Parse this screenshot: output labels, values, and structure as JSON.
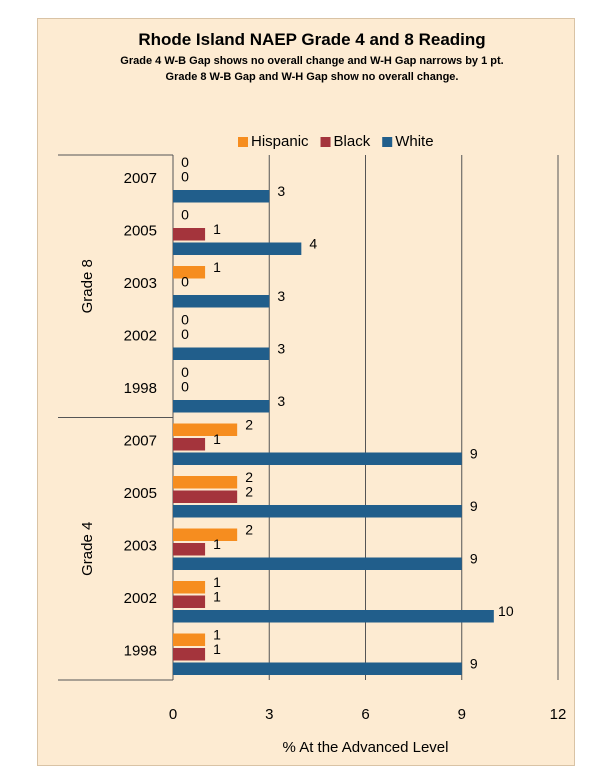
{
  "chart_data": {
    "type": "bar",
    "orientation": "horizontal",
    "title": "Rhode Island NAEP Grade 4 and 8 Reading",
    "subtitle": [
      "Grade 4 W-B Gap shows no overall change and W-H Gap narrows by 1 pt.",
      "Grade 8 W-B Gap and W-H Gap show no overall change."
    ],
    "groups": [
      {
        "label": "Grade 8",
        "categories": [
          "2007",
          "2005",
          "2003",
          "2002",
          "1998"
        ]
      },
      {
        "label": "Grade 4",
        "categories": [
          "2007",
          "2005",
          "2003",
          "2002",
          "1998"
        ]
      }
    ],
    "series": [
      {
        "name": "Hispanic",
        "color": "#f68d1f",
        "values": [
          0,
          0,
          1,
          0,
          0,
          2,
          2,
          2,
          1,
          1
        ]
      },
      {
        "name": "Black",
        "color": "#a4343c",
        "values": [
          0,
          1,
          0,
          0,
          0,
          1,
          2,
          1,
          1,
          1
        ]
      },
      {
        "name": "White",
        "color": "#215e8b",
        "values": [
          3,
          4,
          3,
          3,
          3,
          9,
          9,
          9,
          10,
          9
        ]
      }
    ],
    "xlabel": "% At the Advanced Level",
    "xlim": [
      0,
      12
    ],
    "xticks": [
      0,
      3,
      6,
      9,
      12
    ],
    "grid": true,
    "legend": "top"
  }
}
